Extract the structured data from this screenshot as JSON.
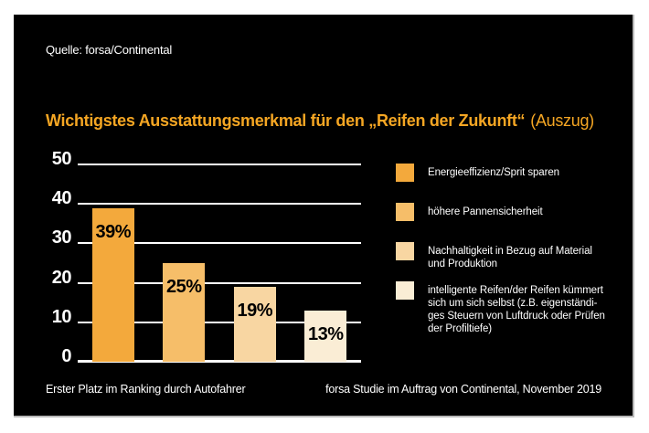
{
  "source_label": "Quelle: forsa/Continental",
  "title": {
    "main": "Wichtigstes Ausstattungsmerkmal für den „Reifen der Zukunft“",
    "suffix": "(Auszug)"
  },
  "colors": {
    "page_background": "#ffffff",
    "panel_background": "#000000",
    "accent_orange": "#f5a623",
    "grid": "#ffffff",
    "text_light": "#ffffff",
    "bar_label": "#000000"
  },
  "chart_data": {
    "type": "bar",
    "title": "Wichtigstes Ausstattungsmerkmal für den „Reifen der Zukunft“ (Auszug)",
    "categories": [
      "Energieeffizienz/Sprit sparen",
      "höhere Pannensicherheit",
      "Nachhaltigkeit in Bezug auf Material und Produktion",
      "intelligente Reifen/der Reifen kümmert sich um sich selbst (z.B. eigenständiges Steuern von Luftdruck oder Prüfen der Profiltiefe)"
    ],
    "values": [
      39,
      25,
      19,
      13
    ],
    "bar_labels": [
      "39%",
      "25%",
      "19%",
      "13%"
    ],
    "bar_colors": [
      "#f3a93c",
      "#f6be69",
      "#f8d6a2",
      "#faedd5"
    ],
    "ylim": [
      0,
      50
    ],
    "yticks": [
      0,
      10,
      20,
      30,
      40,
      50
    ],
    "grid": true,
    "legend_position": "right",
    "xlabel": "",
    "ylabel": ""
  },
  "legend": {
    "items": [
      {
        "color": "#f3a93c",
        "lines": [
          "Energieeffizienz/Sprit sparen"
        ]
      },
      {
        "color": "#f6be69",
        "lines": [
          "höhere Pannensicherheit"
        ]
      },
      {
        "color": "#f8d6a2",
        "lines": [
          "Nachhaltigkeit in Bezug auf Material",
          "und Produktion"
        ]
      },
      {
        "color": "#faedd5",
        "lines": [
          "intelligente Reifen/der Reifen kümmert",
          "sich um sich selbst (z.B. eigenständi-",
          "ges Steuern von Luftdruck oder Prüfen",
          "der Profiltiefe)"
        ]
      }
    ]
  },
  "footer": {
    "left": "Erster Platz im Ranking durch Autofahrer",
    "right": "forsa Studie im Auftrag von Continental, November 2019"
  }
}
